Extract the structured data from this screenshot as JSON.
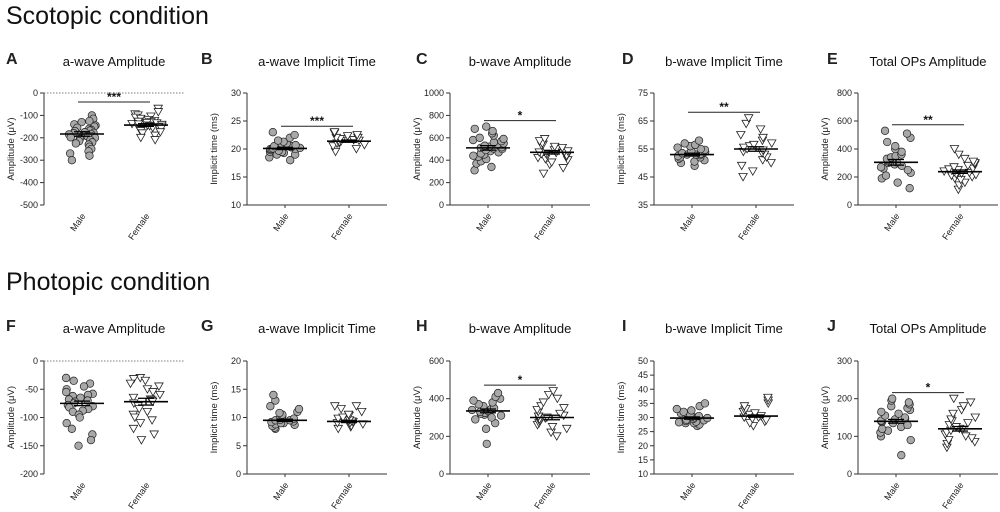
{
  "sections": {
    "scotopic": "Scotopic condition",
    "photopic": "Photopic condition"
  },
  "colors": {
    "male": "#a8a8a8",
    "female": "#ffffff",
    "stroke": "#222222"
  },
  "chart_data": [
    {
      "type": "scatter",
      "letter": "A",
      "title": "a-wave Amplitude",
      "ylabel": "Amplitude (μV)",
      "categories": [
        "Male",
        "Female"
      ],
      "ylim": [
        -500,
        0
      ],
      "yticks": [
        -500,
        -400,
        -300,
        -200,
        -100,
        0
      ],
      "zero_line": true,
      "series": [
        {
          "name": "Male",
          "marker": "circle",
          "mean": -183,
          "sem": 10,
          "values": [
            -100,
            -115,
            -125,
            -130,
            -140,
            -145,
            -150,
            -155,
            -160,
            -165,
            -168,
            -170,
            -175,
            -178,
            -180,
            -183,
            -185,
            -188,
            -190,
            -192,
            -195,
            -198,
            -200,
            -205,
            -210,
            -215,
            -220,
            -225,
            -230,
            -240,
            -250,
            -260,
            -270,
            -280,
            -300
          ]
        },
        {
          "name": "Female",
          "marker": "triangle",
          "mean": -143,
          "sem": 6,
          "values": [
            -70,
            -85,
            -95,
            -100,
            -105,
            -110,
            -115,
            -120,
            -125,
            -128,
            -130,
            -133,
            -135,
            -138,
            -140,
            -142,
            -145,
            -148,
            -150,
            -152,
            -155,
            -158,
            -160,
            -165,
            -170,
            -175,
            -180,
            -190,
            -200,
            -210
          ]
        }
      ],
      "significance": "***"
    },
    {
      "type": "scatter",
      "letter": "B",
      "title": "a-wave Implicit Time",
      "ylabel": "Implicit time (ms)",
      "categories": [
        "Male",
        "Female"
      ],
      "ylim": [
        10,
        30
      ],
      "yticks": [
        10,
        15,
        20,
        25,
        30
      ],
      "zero_line": false,
      "series": [
        {
          "name": "Male",
          "marker": "circle",
          "mean": 20.1,
          "sem": 0.2,
          "values": [
            18,
            18.5,
            19,
            19,
            19.3,
            19.5,
            19.5,
            19.7,
            19.8,
            20,
            20,
            20,
            20.1,
            20.2,
            20.3,
            20.5,
            20.5,
            20.7,
            21,
            21,
            21.3,
            21.5,
            22,
            22.5,
            23
          ]
        },
        {
          "name": "Female",
          "marker": "triangle",
          "mean": 21.4,
          "sem": 0.2,
          "values": [
            19.5,
            20,
            20.5,
            20.7,
            21,
            21,
            21.2,
            21.4,
            21.5,
            21.6,
            21.8,
            22,
            22,
            22.3,
            22.5,
            22.8,
            23
          ]
        }
      ],
      "significance": "***"
    },
    {
      "type": "scatter",
      "letter": "C",
      "title": "b-wave Amplitude",
      "ylabel": "Amplitude (μV)",
      "categories": [
        "Male",
        "Female"
      ],
      "ylim": [
        0,
        1000
      ],
      "yticks": [
        0,
        200,
        400,
        600,
        800,
        1000
      ],
      "zero_line": false,
      "series": [
        {
          "name": "Male",
          "marker": "circle",
          "mean": 510,
          "sem": 20,
          "values": [
            310,
            340,
            370,
            390,
            410,
            430,
            440,
            450,
            460,
            470,
            480,
            490,
            500,
            505,
            510,
            515,
            520,
            530,
            540,
            550,
            560,
            570,
            580,
            590,
            600,
            620,
            640,
            660,
            680,
            700
          ]
        },
        {
          "name": "Female",
          "marker": "triangle",
          "mean": 470,
          "sem": 15,
          "values": [
            280,
            330,
            360,
            380,
            400,
            410,
            420,
            430,
            440,
            450,
            455,
            460,
            465,
            470,
            475,
            480,
            490,
            500,
            510,
            520,
            530,
            540,
            550,
            570,
            590
          ]
        }
      ],
      "significance": "*"
    },
    {
      "type": "scatter",
      "letter": "D",
      "title": "b-wave Implicit Time",
      "ylabel": "Implicit time (ms)",
      "categories": [
        "Male",
        "Female"
      ],
      "ylim": [
        35,
        75
      ],
      "yticks": [
        35,
        45,
        55,
        65,
        75
      ],
      "zero_line": false,
      "series": [
        {
          "name": "Male",
          "marker": "circle",
          "mean": 53,
          "sem": 0.5,
          "values": [
            49,
            50,
            50.5,
            51,
            51.5,
            52,
            52,
            52.5,
            52.8,
            53,
            53,
            53.2,
            53.5,
            54,
            54.3,
            54.7,
            55,
            55.5,
            56,
            56.5,
            57,
            58
          ]
        },
        {
          "name": "Female",
          "marker": "triangle",
          "mean": 55,
          "sem": 0.8,
          "values": [
            45,
            47,
            49,
            50,
            51,
            52,
            53,
            53.5,
            54,
            54.5,
            55,
            55.5,
            56,
            56.5,
            57,
            58,
            59,
            60,
            62,
            64,
            66
          ]
        }
      ],
      "significance": "**"
    },
    {
      "type": "scatter",
      "letter": "E",
      "title": "Total OPs Amplitude",
      "ylabel": "Amplitude (μV)",
      "categories": [
        "Male",
        "Female"
      ],
      "ylim": [
        0,
        800
      ],
      "yticks": [
        0,
        200,
        400,
        600,
        800
      ],
      "zero_line": false,
      "series": [
        {
          "name": "Male",
          "marker": "circle",
          "mean": 305,
          "sem": 20,
          "values": [
            120,
            160,
            190,
            210,
            230,
            250,
            260,
            270,
            280,
            290,
            300,
            305,
            310,
            320,
            330,
            340,
            350,
            360,
            380,
            400,
            420,
            450,
            480,
            510,
            530
          ]
        },
        {
          "name": "Female",
          "marker": "triangle",
          "mean": 238,
          "sem": 12,
          "values": [
            110,
            140,
            160,
            180,
            190,
            200,
            210,
            215,
            220,
            225,
            230,
            235,
            240,
            245,
            250,
            255,
            260,
            270,
            280,
            290,
            300,
            310,
            330,
            360,
            400
          ]
        }
      ],
      "significance": "**"
    },
    {
      "type": "scatter",
      "letter": "F",
      "title": "a-wave Amplitude",
      "ylabel": "Amplitude (μV)",
      "categories": [
        "Male",
        "Female"
      ],
      "ylim": [
        -200,
        0
      ],
      "yticks": [
        -200,
        -150,
        -100,
        -50,
        0
      ],
      "zero_line": true,
      "series": [
        {
          "name": "Male",
          "marker": "circle",
          "mean": -75,
          "sem": 4,
          "values": [
            -30,
            -35,
            -40,
            -45,
            -50,
            -55,
            -58,
            -60,
            -62,
            -65,
            -68,
            -70,
            -72,
            -75,
            -78,
            -80,
            -82,
            -85,
            -88,
            -90,
            -95,
            -100,
            -110,
            -120,
            -130,
            -140,
            -150
          ]
        },
        {
          "name": "Female",
          "marker": "triangle",
          "mean": -72,
          "sem": 6,
          "values": [
            -30,
            -32,
            -35,
            -40,
            -45,
            -50,
            -55,
            -60,
            -65,
            -68,
            -70,
            -72,
            -75,
            -80,
            -85,
            -90,
            -95,
            -100,
            -105,
            -110,
            -120,
            -130,
            -140
          ]
        }
      ],
      "significance": ""
    },
    {
      "type": "scatter",
      "letter": "G",
      "title": "a-wave Implicit Time",
      "ylabel": "Implicit time (ms)",
      "categories": [
        "Male",
        "Female"
      ],
      "ylim": [
        0,
        20
      ],
      "yticks": [
        0,
        5,
        10,
        15,
        20
      ],
      "zero_line": false,
      "series": [
        {
          "name": "Male",
          "marker": "circle",
          "mean": 9.5,
          "sem": 0.2,
          "values": [
            8,
            8.2,
            8.5,
            8.7,
            8.8,
            9,
            9,
            9.2,
            9.3,
            9.5,
            9.5,
            9.6,
            9.8,
            10,
            10,
            10.2,
            10.5,
            10.8,
            11,
            11.5,
            12,
            13,
            14
          ]
        },
        {
          "name": "Female",
          "marker": "triangle",
          "mean": 9.3,
          "sem": 0.2,
          "values": [
            8,
            8.3,
            8.5,
            8.8,
            9,
            9,
            9.2,
            9.3,
            9.5,
            9.8,
            10,
            10.3,
            10.5,
            11,
            11.5,
            12,
            12
          ]
        }
      ],
      "significance": ""
    },
    {
      "type": "scatter",
      "letter": "H",
      "title": "b-wave Amplitude",
      "ylabel": "Amplitude (μV)",
      "categories": [
        "Male",
        "Female"
      ],
      "ylim": [
        0,
        600
      ],
      "yticks": [
        0,
        200,
        400,
        600
      ],
      "zero_line": false,
      "series": [
        {
          "name": "Male",
          "marker": "circle",
          "mean": 335,
          "sem": 10,
          "values": [
            160,
            240,
            270,
            290,
            300,
            310,
            315,
            320,
            325,
            330,
            335,
            340,
            345,
            350,
            360,
            370,
            380,
            390,
            400,
            410,
            430
          ]
        },
        {
          "name": "Female",
          "marker": "triangle",
          "mean": 300,
          "sem": 12,
          "values": [
            200,
            220,
            240,
            250,
            260,
            270,
            280,
            290,
            295,
            300,
            305,
            310,
            320,
            330,
            340,
            350,
            360,
            380,
            400,
            420,
            440
          ]
        }
      ],
      "significance": "*"
    },
    {
      "type": "scatter",
      "letter": "I",
      "title": "b-wave Implicit Time",
      "ylabel": "Implicit time (ms)",
      "categories": [
        "Male",
        "Female"
      ],
      "ylim": [
        10,
        50
      ],
      "yticks": [
        10,
        15,
        20,
        25,
        30,
        35,
        40,
        45,
        50
      ],
      "zero_line": false,
      "series": [
        {
          "name": "Male",
          "marker": "circle",
          "mean": 29.8,
          "sem": 0.4,
          "values": [
            27,
            27.5,
            28,
            28,
            28.3,
            28.5,
            28.8,
            29,
            29.2,
            29.5,
            29.8,
            30,
            30.2,
            30.5,
            31,
            31.5,
            32,
            32.5,
            33,
            34,
            35
          ]
        },
        {
          "name": "Female",
          "marker": "triangle",
          "mean": 30.5,
          "sem": 0.4,
          "values": [
            27,
            28,
            28.5,
            29,
            29.5,
            30,
            30,
            30.5,
            31,
            31.5,
            32,
            32.5,
            33,
            34,
            35,
            36,
            37
          ]
        }
      ],
      "significance": ""
    },
    {
      "type": "scatter",
      "letter": "J",
      "title": "Total OPs Amplitude",
      "ylabel": "Amplitude (μV)",
      "categories": [
        "Male",
        "Female"
      ],
      "ylim": [
        0,
        300
      ],
      "yticks": [
        0,
        100,
        200,
        300
      ],
      "zero_line": false,
      "series": [
        {
          "name": "Male",
          "marker": "circle",
          "mean": 140,
          "sem": 5,
          "values": [
            50,
            90,
            100,
            110,
            115,
            120,
            125,
            130,
            135,
            138,
            140,
            142,
            145,
            148,
            150,
            155,
            160,
            165,
            170,
            175,
            180,
            185,
            190,
            195,
            200
          ]
        },
        {
          "name": "Female",
          "marker": "triangle",
          "mean": 120,
          "sem": 6,
          "values": [
            70,
            80,
            85,
            90,
            95,
            100,
            105,
            110,
            115,
            118,
            120,
            125,
            130,
            135,
            140,
            145,
            150,
            160,
            170,
            180,
            190,
            200
          ]
        }
      ],
      "significance": "*"
    }
  ]
}
